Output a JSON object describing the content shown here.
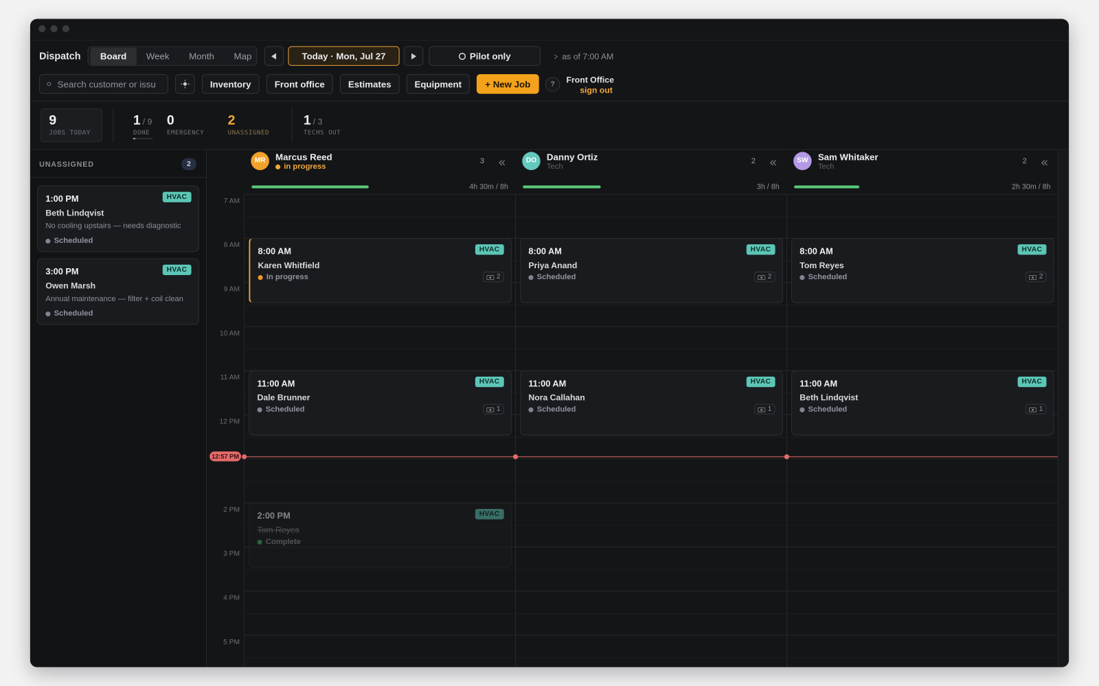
{
  "header": {
    "app_title": "Dispatch",
    "views": [
      "Board",
      "Week",
      "Month",
      "Map"
    ],
    "date": "Today · Mon, Jul 27",
    "pilot": "Pilot only",
    "as_of": "as of 7:00 AM"
  },
  "toolbar": {
    "search_placeholder": "Search customer or issu",
    "buttons": [
      "Inventory",
      "Front office",
      "Estimates",
      "Equipment"
    ],
    "new_job": "+ New Job",
    "help": "?",
    "user": "Front Office",
    "sign_out": "sign out"
  },
  "stats": [
    {
      "value": 9,
      "label": "JOBS TODAY"
    },
    {
      "value": 1,
      "of": "/ 9",
      "label": "DONE"
    },
    {
      "value": 0,
      "label": "EMERGENCY"
    },
    {
      "value": 2,
      "label": "UNASSIGNED",
      "color": "#f2a93b"
    },
    {
      "value": 1,
      "of": "/ 3",
      "label": "TECHS OUT"
    }
  ],
  "unassigned": {
    "title": "UNASSIGNED",
    "count": 2,
    "jobs": [
      {
        "time": "1:00 PM",
        "tag": "HVAC",
        "customer": "Beth Lindqvist",
        "note": "No cooling upstairs — needs diagnostic",
        "status": "Scheduled",
        "status_color": "#7d8593"
      },
      {
        "time": "3:00 PM",
        "tag": "HVAC",
        "customer": "Owen Marsh",
        "note": "Annual maintenance — filter + coil clean",
        "status": "Scheduled",
        "status_color": "#7d8593"
      }
    ]
  },
  "hours": [
    "7 AM",
    "8 AM",
    "9 AM",
    "10 AM",
    "11 AM",
    "12 PM",
    null,
    "2 PM",
    "3 PM",
    "4 PM",
    "5 PM"
  ],
  "now": "12:57 PM",
  "technicians": [
    {
      "initials": "MR",
      "name": "Marcus Reed",
      "status": "in progress",
      "status_color": "#f2a93b",
      "color": "#f2a22a",
      "job_count": 3,
      "hours": "4h 30m / 8h",
      "jobs": [
        {
          "time": "8:00 AM",
          "customer": "Karen Whitfield",
          "tag": "HVAC",
          "status": "In progress",
          "status_color": "#f0932b",
          "photos": 2,
          "active": true
        },
        {
          "time": "11:00 AM",
          "customer": "Dale Brunner",
          "tag": "HVAC",
          "status": "Scheduled",
          "status_color": "#7d8593",
          "photos": 1
        },
        {
          "time": "2:00 PM",
          "customer": "Tom Reyes",
          "tag": "HVAC",
          "status": "Complete",
          "status_color": "#3fae5a",
          "muted": true
        }
      ]
    },
    {
      "initials": "DO",
      "name": "Danny Ortiz",
      "status": "Tech",
      "status_color": "#5d6168",
      "color": "#63c9bd",
      "job_count": 2,
      "hours": "3h / 8h",
      "jobs": [
        {
          "time": "8:00 AM",
          "customer": "Priya Anand",
          "tag": "HVAC",
          "status": "Scheduled",
          "status_color": "#7d8593",
          "photos": 2
        },
        {
          "time": "11:00 AM",
          "customer": "Nora Callahan",
          "tag": "HVAC",
          "status": "Scheduled",
          "status_color": "#7d8593",
          "photos": 1
        }
      ]
    },
    {
      "initials": "SW",
      "name": "Sam Whitaker",
      "status": "Tech",
      "status_color": "#5d6168",
      "color": "#b49ae6",
      "job_count": 2,
      "hours": "2h 30m / 8h",
      "jobs": [
        {
          "time": "8:00 AM",
          "customer": "Tom Reyes",
          "tag": "HVAC",
          "status": "Scheduled",
          "status_color": "#7d8593",
          "photos": 2
        },
        {
          "time": "11:00 AM",
          "customer": "Beth Lindqvist",
          "tag": "HVAC",
          "status": "Scheduled",
          "status_color": "#7d8593",
          "photos": 1
        }
      ]
    }
  ]
}
